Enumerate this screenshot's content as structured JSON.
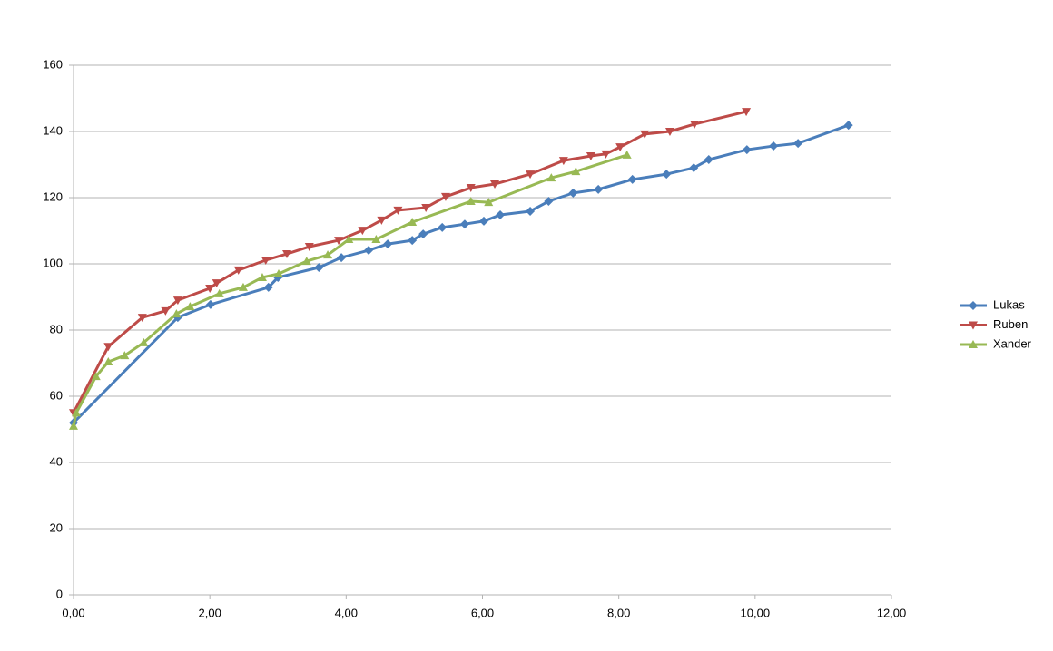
{
  "chart_data": {
    "type": "line",
    "grid": true,
    "legend": "right",
    "xlim": [
      0,
      12
    ],
    "xticks": [
      {
        "value": 0,
        "label": "0,00"
      },
      {
        "value": 2,
        "label": "2,00"
      },
      {
        "value": 4,
        "label": "4,00"
      },
      {
        "value": 6,
        "label": "6,00"
      },
      {
        "value": 8,
        "label": "8,00"
      },
      {
        "value": 10,
        "label": "10,00"
      },
      {
        "value": 12,
        "label": "12,00"
      }
    ],
    "ylim": [
      0,
      160
    ],
    "yticks": [
      0,
      20,
      40,
      60,
      80,
      100,
      120,
      140,
      160
    ],
    "series": [
      {
        "name": "Lukas",
        "color": "#4a7ebb",
        "marker": "diamond",
        "x": [
          0,
          1.53,
          2.01,
          2.86,
          3.0,
          3.6,
          3.93,
          4.33,
          4.61,
          4.97,
          5.13,
          5.41,
          5.74,
          6.02,
          6.26,
          6.7,
          6.97,
          7.33,
          7.7,
          8.2,
          8.7,
          9.1,
          9.32,
          9.88,
          10.27,
          10.63,
          11.37
        ],
        "values": [
          52,
          83.8,
          87.7,
          92.9,
          95.9,
          98.9,
          101.9,
          104.1,
          106,
          107.1,
          109,
          111,
          112,
          112.9,
          114.8,
          115.9,
          118.9,
          121.4,
          122.5,
          125.5,
          127.1,
          129,
          131.5,
          134.5,
          135.6,
          136.4,
          141.9
        ]
      },
      {
        "name": "Ruben",
        "color": "#be4b48",
        "marker": "triangle-down",
        "x": [
          0,
          0.51,
          1.01,
          1.35,
          1.53,
          2.0,
          2.1,
          2.42,
          2.82,
          3.13,
          3.46,
          3.89,
          4.24,
          4.52,
          4.76,
          5.17,
          5.46,
          5.83,
          6.18,
          6.7,
          7.19,
          7.59,
          7.81,
          8.02,
          8.38,
          8.75,
          9.11,
          9.87
        ],
        "values": [
          55,
          75,
          83.8,
          85.8,
          89,
          92.6,
          94.2,
          98.1,
          101.1,
          103,
          105.2,
          107.1,
          110.1,
          113.2,
          116.2,
          117,
          120.3,
          123,
          124.1,
          127.1,
          131.2,
          132.6,
          133.2,
          135.3,
          139.2,
          140,
          142.2,
          146
        ]
      },
      {
        "name": "Xander",
        "color": "#98b954",
        "marker": "triangle-up",
        "x": [
          0,
          0.04,
          0.33,
          0.51,
          0.75,
          1.03,
          1.51,
          1.71,
          2.14,
          2.49,
          2.77,
          3.01,
          3.42,
          3.73,
          4.04,
          4.44,
          4.97,
          5.83,
          6.09,
          7.01,
          7.37,
          8.12
        ],
        "values": [
          51,
          55,
          66,
          70.4,
          72.3,
          76.2,
          84.9,
          87.1,
          91,
          92.9,
          95.9,
          97,
          100.8,
          102.7,
          107.4,
          107.4,
          112.6,
          118.9,
          118.6,
          126,
          127.9,
          132.9
        ]
      }
    ]
  }
}
